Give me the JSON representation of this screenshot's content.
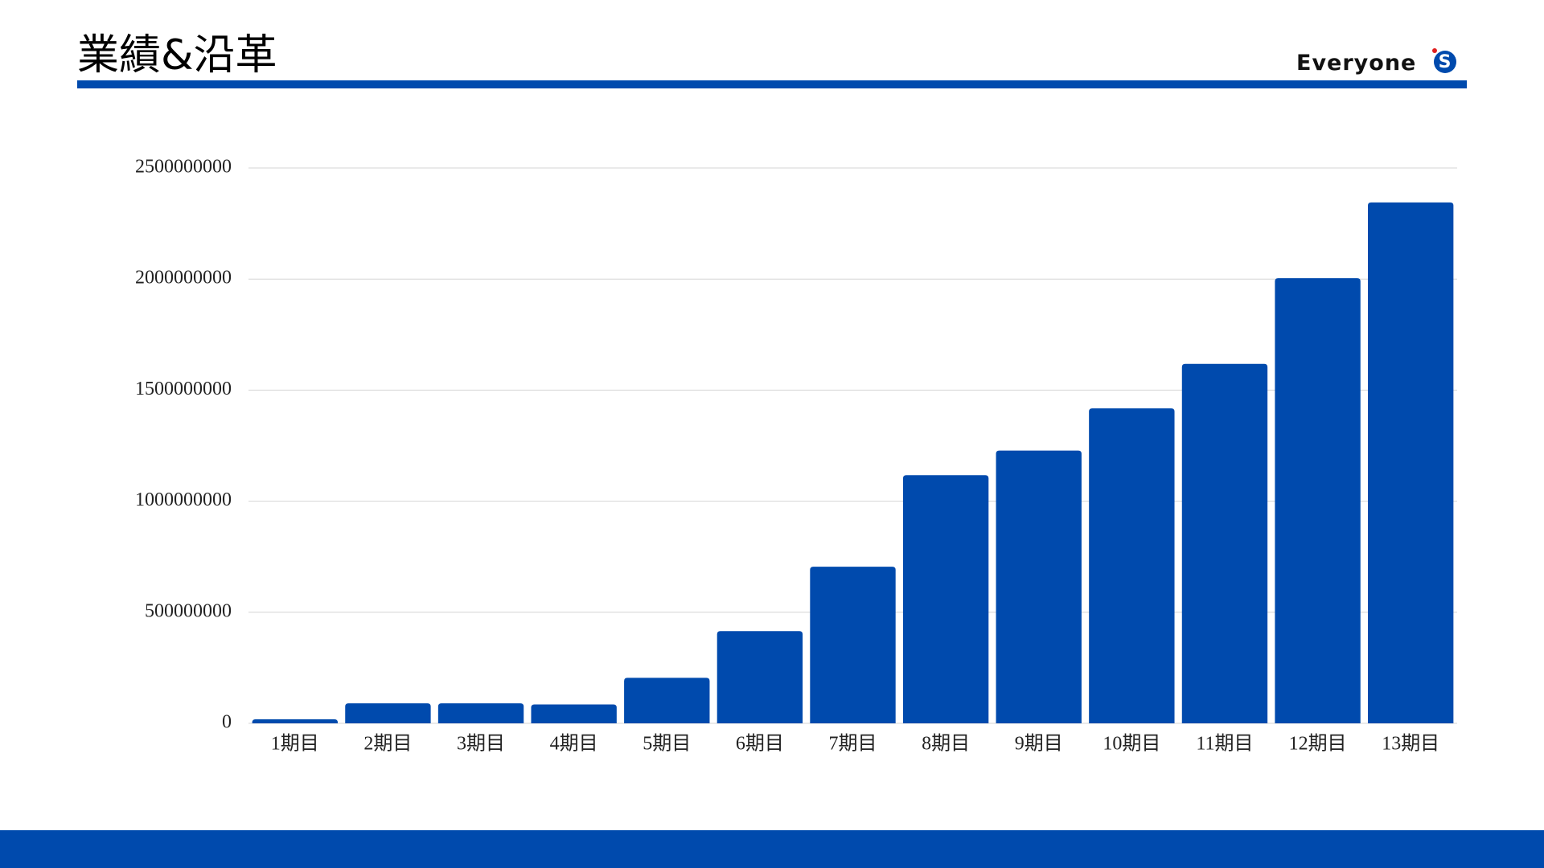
{
  "header": {
    "title": "業績&沿革",
    "logo_text": "Everyone",
    "logo_mark": "S"
  },
  "chart_data": {
    "type": "bar",
    "categories": [
      "1期目",
      "2期目",
      "3期目",
      "4期目",
      "5期目",
      "6期目",
      "7期目",
      "8期目",
      "9期目",
      "10期目",
      "11期目",
      "12期目",
      "13期目"
    ],
    "values": [
      18000000,
      90000000,
      90000000,
      85000000,
      205000000,
      415000000,
      705000000,
      1117000000,
      1228000000,
      1418000000,
      1618000000,
      2004000000,
      2345000000
    ],
    "color": "#004aad",
    "ylim": [
      0,
      2500000000
    ],
    "yticks": [
      0,
      500000000,
      1000000000,
      1500000000,
      2000000000,
      2500000000
    ],
    "grid": true
  }
}
